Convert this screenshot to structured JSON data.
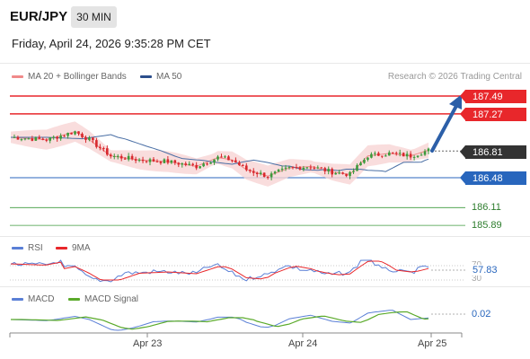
{
  "header": {
    "symbol": "EUR/JPY",
    "timeframe": "30 MIN",
    "datetime": "Friday, April 24, 2026 9:35:28 PM CET"
  },
  "legend": {
    "bollinger": "MA 20 + Bollinger Bands",
    "ma50": "MA 50",
    "research": "Research © 2026 Trading Central"
  },
  "levels": {
    "resistance2": "187.49",
    "resistance1": "187.27",
    "last": "186.81",
    "pivot": "186.48",
    "support1": "186.11",
    "support2": "185.89"
  },
  "rsi": {
    "label": "RSI",
    "ma_label": "9MA",
    "value": "57.83",
    "upper": "70",
    "lower": "30"
  },
  "macd": {
    "label": "MACD",
    "signal_label": "MACD Signal",
    "value": "0.02"
  },
  "xaxis": {
    "labels": [
      "Apr 23",
      "Apr 24",
      "Apr 25"
    ]
  },
  "colors": {
    "resistance": "#e8272b",
    "pivot": "#2866bd",
    "last": "#333333",
    "support": "#3c9a3c",
    "candle_up": "#3c9a3c",
    "candle_down": "#d8282d",
    "bollinger": "#f8d5d5",
    "ma50": "#4a6fa5",
    "rsi": "#5a7fd6",
    "rsi_ma": "#e8272b",
    "macd": "#5a7fd6",
    "macd_signal": "#5aaa2a",
    "arrow": "#2c5fa8"
  },
  "chart_data": {
    "type": "candlestick",
    "price_levels": [
      187.49,
      187.27,
      186.81,
      186.48,
      186.11,
      185.89
    ],
    "last_price": 186.81,
    "rsi_value": 57.83,
    "macd_value": 0.02,
    "x_ticks": [
      "Apr 23",
      "Apr 24",
      "Apr 25"
    ],
    "forecast": "up toward 187.49"
  }
}
